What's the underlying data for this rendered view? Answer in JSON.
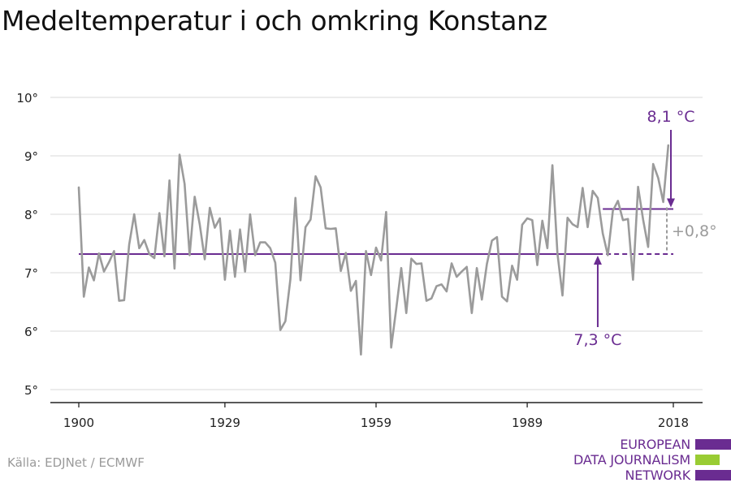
{
  "title": "Medeltemperatur i och omkring Konstanz",
  "source": "Källa: EDJNet / ECMWF",
  "logo": {
    "lines": [
      "EUROPEAN",
      "DATA JOURNALISM",
      "NETWORK"
    ],
    "colors": {
      "purple": "#6a2c91",
      "green": "#99cc33"
    }
  },
  "colors": {
    "series": "#9b9b9b",
    "accent": "#6a2c91",
    "grid": "#d9d9d9",
    "axis": "#222222",
    "delta": "#9b9b9b"
  },
  "chart_data": {
    "type": "line",
    "title": "Medeltemperatur i och omkring Konstanz",
    "xlabel": "",
    "ylabel": "",
    "ylim": [
      5,
      10
    ],
    "xlim": [
      1900,
      2018
    ],
    "x_ticks": [
      1900,
      1929,
      1959,
      1989,
      2018
    ],
    "y_ticks": [
      5,
      6,
      7,
      8,
      9,
      10
    ],
    "y_tick_suffix": "°",
    "grid": true,
    "series": [
      {
        "values": [
          8.46,
          6.59,
          7.09,
          6.87,
          7.33,
          7.02,
          7.18,
          7.37,
          6.52,
          6.53,
          7.48,
          8.0,
          7.42,
          7.56,
          7.32,
          7.25,
          8.02,
          7.28,
          8.58,
          7.07,
          9.02,
          8.52,
          7.3,
          8.3,
          7.83,
          7.23,
          8.11,
          7.77,
          7.93,
          6.88,
          7.72,
          6.93,
          7.74,
          7.02,
          8.0,
          7.3,
          7.52,
          7.52,
          7.42,
          7.17,
          6.02,
          6.17,
          6.89,
          8.28,
          6.87,
          7.78,
          7.91,
          8.65,
          8.46,
          7.76,
          7.75,
          7.76,
          7.03,
          7.34,
          6.69,
          6.86,
          5.6,
          7.37,
          6.96,
          7.43,
          7.21,
          8.04,
          5.72,
          6.38,
          7.08,
          6.31,
          7.24,
          7.15,
          7.16,
          6.52,
          6.56,
          6.77,
          6.8,
          6.68,
          7.16,
          6.93,
          7.02,
          7.1,
          6.31,
          7.08,
          6.54,
          7.15,
          7.55,
          7.61,
          6.59,
          6.51,
          7.12,
          6.88,
          7.82,
          7.93,
          7.9,
          7.13,
          7.89,
          7.42,
          8.84,
          7.33,
          6.61,
          7.94,
          7.83,
          7.78,
          8.45,
          7.78,
          8.4,
          8.28,
          7.67,
          7.3,
          8.06,
          8.23,
          7.9,
          7.92,
          6.88,
          8.47,
          7.91,
          7.44,
          8.86,
          8.62,
          8.21,
          9.18
        ]
      }
    ],
    "reference_lines": [
      {
        "label": "7,3 °C",
        "value": 7.32,
        "x_start": 1900,
        "x_end": 2018
      },
      {
        "label": "8,1 °C",
        "value": 8.09,
        "x_start": 2004,
        "x_end": 2018
      }
    ],
    "difference_label": "+0,8°"
  }
}
